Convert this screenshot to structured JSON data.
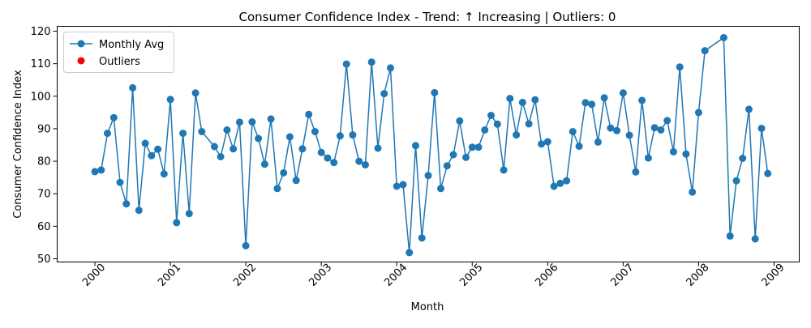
{
  "chart_data": {
    "type": "line",
    "title": "Consumer Confidence Index - Trend: ↑ Increasing | Outliers: 0",
    "xlabel": "Month",
    "ylabel": "Consumer Confidence Index",
    "x_tick_labels": [
      "2000",
      "2001",
      "2002",
      "2003",
      "2004",
      "2005",
      "2006",
      "2007",
      "2008",
      "2009"
    ],
    "y_tick_labels": [
      "50",
      "60",
      "70",
      "80",
      "90",
      "100",
      "110",
      "120"
    ],
    "xlim": [
      "1999-07",
      "2009-05"
    ],
    "ylim": [
      49,
      121.5
    ],
    "grid": false,
    "legend_position": "top-left",
    "colors": {
      "series": "#1f77b4",
      "outliers": "#ff0000"
    },
    "legend": [
      {
        "label": "Monthly Avg",
        "marker": "line-circle",
        "color": "#1f77b4"
      },
      {
        "label": "Outliers",
        "marker": "circle",
        "color": "#ff0000"
      }
    ],
    "x": [
      "2000-01",
      "2000-02",
      "2000-03",
      "2000-04",
      "2000-05",
      "2000-06",
      "2000-07",
      "2000-08",
      "2000-09",
      "2000-10",
      "2000-11",
      "2000-12",
      "2001-01",
      "2001-02",
      "2001-03",
      "2001-04",
      "2001-05",
      "2001-06",
      "2001-07",
      "2001-08",
      "2001-09",
      "2001-10",
      "2001-11",
      "2001-12",
      "2002-01",
      "2002-02",
      "2002-03",
      "2002-04",
      "2002-05",
      "2002-06",
      "2002-07",
      "2002-08",
      "2002-09",
      "2002-10",
      "2002-11",
      "2002-12",
      "2003-01",
      "2003-02",
      "2003-03",
      "2003-04",
      "2003-05",
      "2003-06",
      "2003-07",
      "2003-08",
      "2003-09",
      "2003-10",
      "2003-11",
      "2003-12",
      "2004-01",
      "2004-02",
      "2004-03",
      "2004-04",
      "2004-05",
      "2004-06",
      "2004-07",
      "2004-08",
      "2004-09",
      "2004-10",
      "2004-11",
      "2004-12",
      "2005-01",
      "2005-02",
      "2005-03",
      "2005-04",
      "2005-05",
      "2005-06",
      "2005-07",
      "2005-08",
      "2005-09",
      "2005-10",
      "2005-11",
      "2005-12",
      "2006-01",
      "2006-02",
      "2006-03",
      "2006-04",
      "2006-05",
      "2006-06",
      "2006-07",
      "2006-08",
      "2006-09",
      "2006-10",
      "2006-11",
      "2006-12",
      "2007-01",
      "2007-02",
      "2007-03",
      "2007-04",
      "2007-05",
      "2007-06",
      "2007-07",
      "2007-08",
      "2007-09",
      "2007-10",
      "2007-11",
      "2007-12",
      "2008-01",
      "2008-02",
      "2008-03",
      "2008-04",
      "2008-05",
      "2008-06",
      "2008-07",
      "2008-08",
      "2008-09",
      "2008-10",
      "2008-11",
      "2008-12"
    ],
    "series": [
      {
        "name": "Monthly Avg",
        "values": [
          76.8,
          77.3,
          88.6,
          93.4,
          73.5,
          66.9,
          102.6,
          64.9,
          85.5,
          81.7,
          83.7,
          76.1,
          99.0,
          61.1,
          88.6,
          63.9,
          101.0,
          89.1,
          null,
          84.5,
          81.4,
          89.6,
          83.8,
          92.0,
          54.0,
          92.1,
          87.0,
          79.1,
          93.0,
          71.6,
          76.4,
          87.5,
          74.1,
          83.8,
          94.4,
          89.1,
          82.7,
          81.0,
          79.6,
          87.8,
          109.9,
          88.1,
          80.0,
          78.9,
          110.5,
          84.0,
          100.8,
          108.7,
          72.3,
          72.8,
          51.9,
          84.8,
          56.4,
          75.6,
          101.1,
          71.6,
          78.6,
          82.0,
          92.4,
          81.2,
          84.3,
          84.3,
          89.6,
          94.1,
          91.4,
          77.3,
          99.3,
          88.1,
          98.1,
          91.5,
          98.9,
          85.3,
          86.0,
          72.3,
          73.2,
          74.0,
          89.1,
          84.6,
          98.0,
          97.5,
          85.9,
          99.5,
          90.2,
          89.4,
          101.0,
          88.0,
          76.7,
          98.7,
          81.0,
          90.3,
          89.6,
          92.5,
          82.9,
          109.0,
          82.2,
          70.5,
          95.0,
          114.0,
          null,
          null,
          118.0,
          57.0,
          74.0,
          80.9,
          96.0,
          56.1,
          90.1,
          76.2
        ]
      }
    ],
    "outliers": []
  }
}
